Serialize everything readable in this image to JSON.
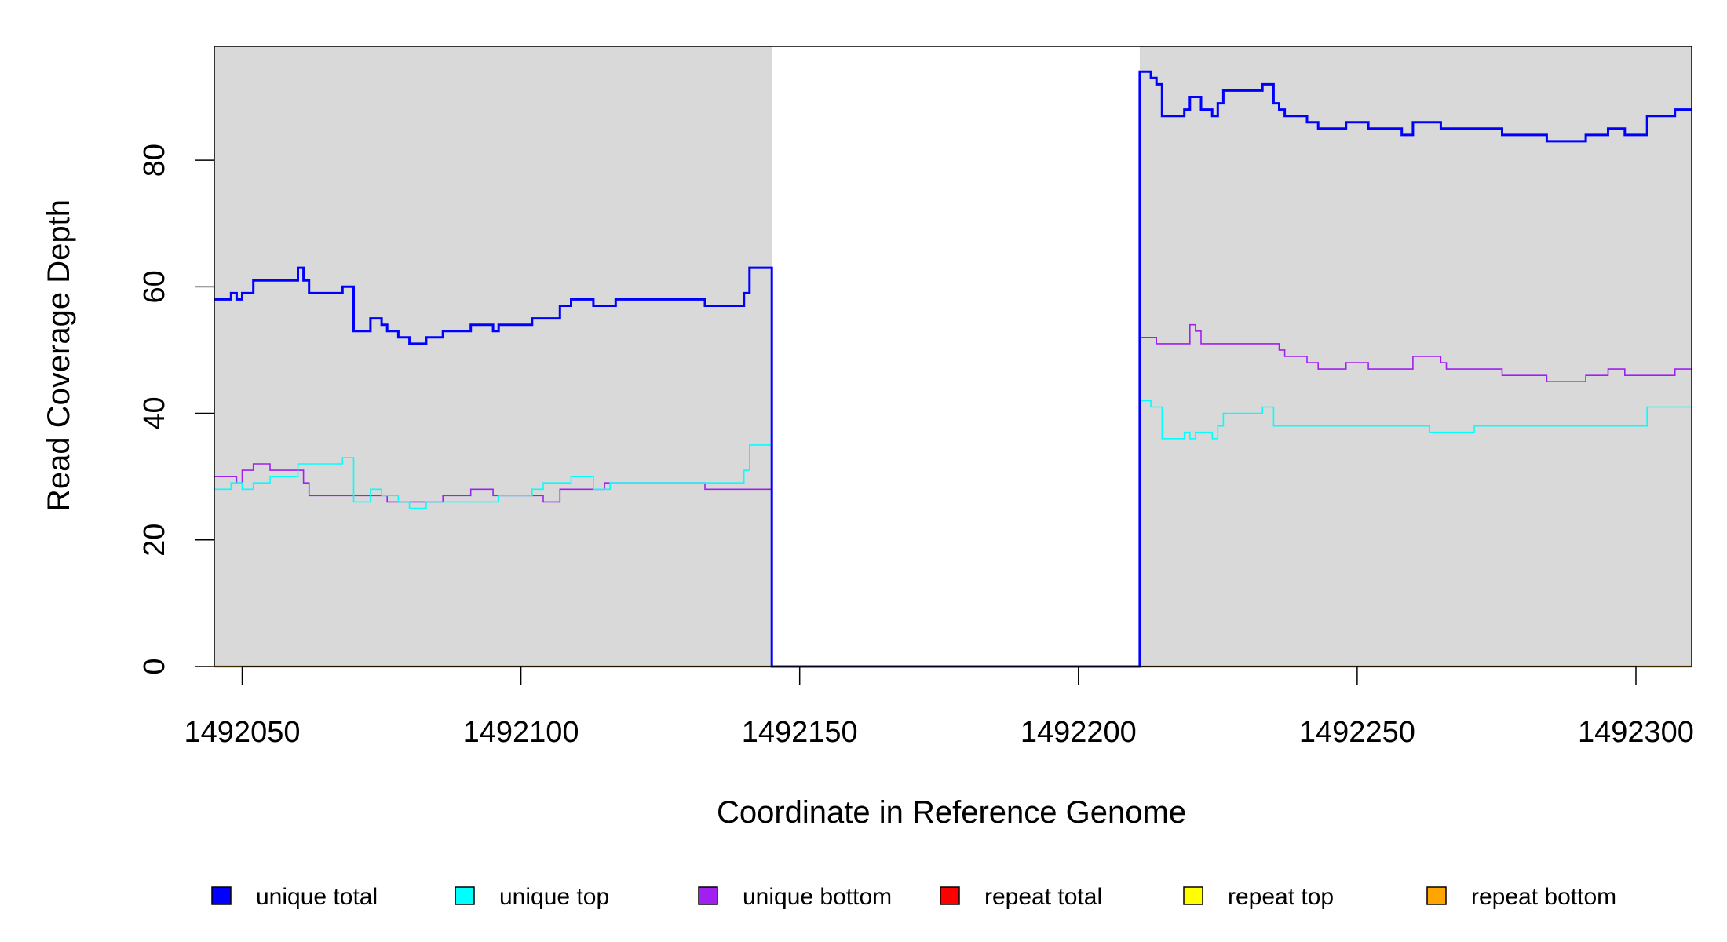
{
  "chart_data": {
    "type": "line",
    "title": "",
    "xlabel": "Coordinate in Reference Genome",
    "ylabel": "Read Coverage Depth",
    "xlim": [
      1492045,
      1492310
    ],
    "ylim": [
      0,
      98
    ],
    "x_ticks": [
      1492050,
      1492100,
      1492150,
      1492200,
      1492250,
      1492300
    ],
    "y_ticks": [
      0,
      20,
      40,
      60,
      80
    ],
    "shaded_regions": [
      {
        "from": 1492045,
        "to": 1492145,
        "color": "#d9d9d9"
      },
      {
        "from": 1492211,
        "to": 1492310,
        "color": "#d9d9d9"
      }
    ],
    "legend_position": "bottom",
    "series": [
      {
        "name": "unique total",
        "color": "#0000ff",
        "step": true,
        "points": [
          [
            1492045,
            58
          ],
          [
            1492048,
            59
          ],
          [
            1492049,
            58
          ],
          [
            1492050,
            59
          ],
          [
            1492052,
            61
          ],
          [
            1492060,
            63
          ],
          [
            1492061,
            61
          ],
          [
            1492062,
            59
          ],
          [
            1492068,
            60
          ],
          [
            1492070,
            53
          ],
          [
            1492073,
            55
          ],
          [
            1492075,
            54
          ],
          [
            1492076,
            53
          ],
          [
            1492078,
            52
          ],
          [
            1492080,
            51
          ],
          [
            1492083,
            52
          ],
          [
            1492086,
            53
          ],
          [
            1492091,
            54
          ],
          [
            1492095,
            53
          ],
          [
            1492096,
            54
          ],
          [
            1492102,
            55
          ],
          [
            1492107,
            57
          ],
          [
            1492109,
            58
          ],
          [
            1492113,
            57
          ],
          [
            1492117,
            58
          ],
          [
            1492133,
            57
          ],
          [
            1492140,
            59
          ],
          [
            1492141,
            63
          ],
          [
            1492145,
            0
          ],
          [
            1492211,
            94
          ],
          [
            1492213,
            93
          ],
          [
            1492214,
            92
          ],
          [
            1492215,
            87
          ],
          [
            1492219,
            88
          ],
          [
            1492220,
            90
          ],
          [
            1492222,
            88
          ],
          [
            1492224,
            87
          ],
          [
            1492225,
            89
          ],
          [
            1492226,
            91
          ],
          [
            1492233,
            92
          ],
          [
            1492235,
            89
          ],
          [
            1492236,
            88
          ],
          [
            1492237,
            87
          ],
          [
            1492241,
            86
          ],
          [
            1492243,
            85
          ],
          [
            1492248,
            86
          ],
          [
            1492252,
            85
          ],
          [
            1492258,
            84
          ],
          [
            1492260,
            86
          ],
          [
            1492265,
            85
          ],
          [
            1492276,
            84
          ],
          [
            1492284,
            83
          ],
          [
            1492291,
            84
          ],
          [
            1492295,
            85
          ],
          [
            1492298,
            84
          ],
          [
            1492302,
            87
          ],
          [
            1492307,
            88
          ],
          [
            1492310,
            88
          ]
        ]
      },
      {
        "name": "unique top",
        "color": "#00ffff",
        "step": true,
        "points": [
          [
            1492045,
            28
          ],
          [
            1492048,
            29
          ],
          [
            1492050,
            28
          ],
          [
            1492052,
            29
          ],
          [
            1492055,
            30
          ],
          [
            1492060,
            32
          ],
          [
            1492068,
            33
          ],
          [
            1492070,
            26
          ],
          [
            1492073,
            28
          ],
          [
            1492075,
            27
          ],
          [
            1492078,
            26
          ],
          [
            1492080,
            25
          ],
          [
            1492083,
            26
          ],
          [
            1492091,
            26
          ],
          [
            1492096,
            27
          ],
          [
            1492102,
            28
          ],
          [
            1492104,
            29
          ],
          [
            1492109,
            30
          ],
          [
            1492113,
            28
          ],
          [
            1492116,
            29
          ],
          [
            1492133,
            29
          ],
          [
            1492140,
            31
          ],
          [
            1492141,
            35
          ],
          [
            1492145,
            0
          ],
          [
            1492211,
            42
          ],
          [
            1492213,
            41
          ],
          [
            1492215,
            36
          ],
          [
            1492219,
            37
          ],
          [
            1492220,
            36
          ],
          [
            1492221,
            37
          ],
          [
            1492224,
            36
          ],
          [
            1492225,
            38
          ],
          [
            1492226,
            40
          ],
          [
            1492233,
            41
          ],
          [
            1492235,
            38
          ],
          [
            1492263,
            37
          ],
          [
            1492271,
            38
          ],
          [
            1492302,
            41
          ],
          [
            1492310,
            41
          ]
        ]
      },
      {
        "name": "unique bottom",
        "color": "#a020f0",
        "step": true,
        "points": [
          [
            1492045,
            30
          ],
          [
            1492049,
            29
          ],
          [
            1492050,
            31
          ],
          [
            1492052,
            32
          ],
          [
            1492055,
            31
          ],
          [
            1492061,
            29
          ],
          [
            1492062,
            27
          ],
          [
            1492070,
            27
          ],
          [
            1492072,
            27
          ],
          [
            1492076,
            26
          ],
          [
            1492086,
            27
          ],
          [
            1492091,
            28
          ],
          [
            1492095,
            27
          ],
          [
            1492104,
            26
          ],
          [
            1492107,
            28
          ],
          [
            1492113,
            28
          ],
          [
            1492115,
            29
          ],
          [
            1492133,
            28
          ],
          [
            1492145,
            0
          ],
          [
            1492211,
            52
          ],
          [
            1492214,
            51
          ],
          [
            1492220,
            54
          ],
          [
            1492221,
            53
          ],
          [
            1492222,
            51
          ],
          [
            1492236,
            50
          ],
          [
            1492237,
            49
          ],
          [
            1492241,
            48
          ],
          [
            1492243,
            47
          ],
          [
            1492248,
            48
          ],
          [
            1492252,
            47
          ],
          [
            1492260,
            49
          ],
          [
            1492265,
            48
          ],
          [
            1492266,
            47
          ],
          [
            1492276,
            46
          ],
          [
            1492284,
            45
          ],
          [
            1492291,
            46
          ],
          [
            1492295,
            47
          ],
          [
            1492298,
            46
          ],
          [
            1492307,
            47
          ],
          [
            1492310,
            47
          ]
        ]
      },
      {
        "name": "repeat total",
        "color": "#ff0000",
        "step": true,
        "points": [
          [
            1492045,
            0
          ],
          [
            1492310,
            0
          ]
        ]
      },
      {
        "name": "repeat top",
        "color": "#ffff00",
        "step": true,
        "points": [
          [
            1492045,
            0
          ],
          [
            1492310,
            0
          ]
        ]
      },
      {
        "name": "repeat bottom",
        "color": "#ffa500",
        "step": true,
        "points": [
          [
            1492045,
            0
          ],
          [
            1492310,
            0
          ]
        ]
      }
    ]
  }
}
